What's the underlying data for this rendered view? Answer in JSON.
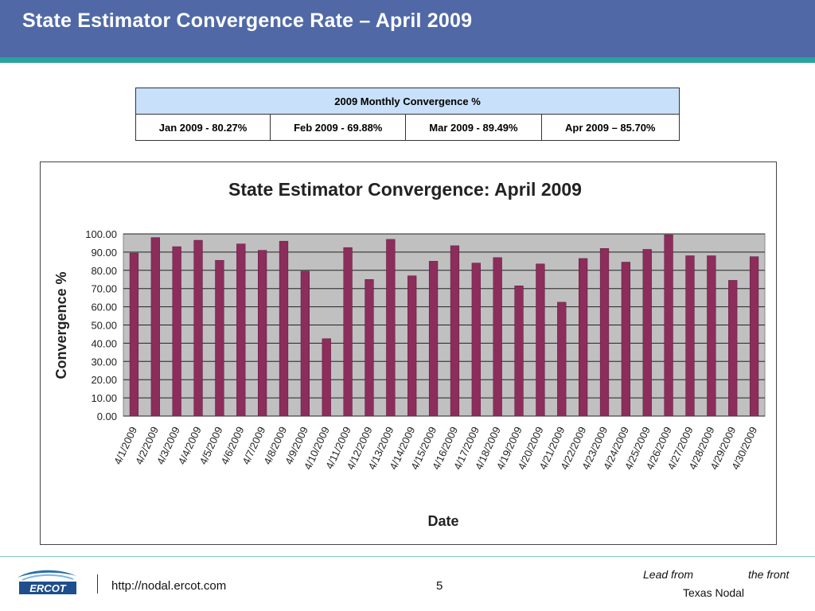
{
  "slide": {
    "title": "State Estimator Convergence Rate – April 2009"
  },
  "monthly_table": {
    "header": "2009 Monthly Convergence %",
    "cells": [
      "Jan 2009 - 80.27%",
      "Feb 2009 - 69.88%",
      "Mar 2009 - 89.49%",
      "Apr 2009 – 85.70%"
    ]
  },
  "chart_data": {
    "type": "bar",
    "title": "State Estimator Convergence: April 2009",
    "xlabel": "Date",
    "ylabel": "Convergence %",
    "ylim": [
      0,
      100
    ],
    "yticks": [
      "0.00",
      "10.00",
      "20.00",
      "30.00",
      "40.00",
      "50.00",
      "60.00",
      "70.00",
      "80.00",
      "90.00",
      "100.00"
    ],
    "grid": true,
    "legend": "none",
    "bar_color": "#8c2d5c",
    "plot_background": "#c0c0c0",
    "categories": [
      "4/1/2009",
      "4/2/2009",
      "4/3/2009",
      "4/4/2009",
      "4/5/2009",
      "4/6/2009",
      "4/7/2009",
      "4/8/2009",
      "4/9/2009",
      "4/10/2009",
      "4/11/2009",
      "4/12/2009",
      "4/13/2009",
      "4/14/2009",
      "4/15/2009",
      "4/16/2009",
      "4/17/2009",
      "4/18/2009",
      "4/19/2009",
      "4/20/2009",
      "4/21/2009",
      "4/22/2009",
      "4/23/2009",
      "4/24/2009",
      "4/25/2009",
      "4/26/2009",
      "4/27/2009",
      "4/28/2009",
      "4/29/2009",
      "4/30/2009"
    ],
    "values": [
      89.5,
      98,
      93,
      96.5,
      85.5,
      94.5,
      91,
      96,
      79.5,
      42.5,
      92.5,
      75,
      97,
      77,
      85,
      93.5,
      84,
      87,
      71.5,
      83.5,
      62.5,
      86.5,
      92,
      84.5,
      91.5,
      99.5,
      88,
      88,
      74.5,
      87.5
    ]
  },
  "footer": {
    "logo_text": "ERCOT",
    "url": "http://nodal.ercot.com",
    "page": "5",
    "tagline_a": "Lead from",
    "tagline_b": "the front",
    "tagline_c": "Texas Nodal"
  }
}
